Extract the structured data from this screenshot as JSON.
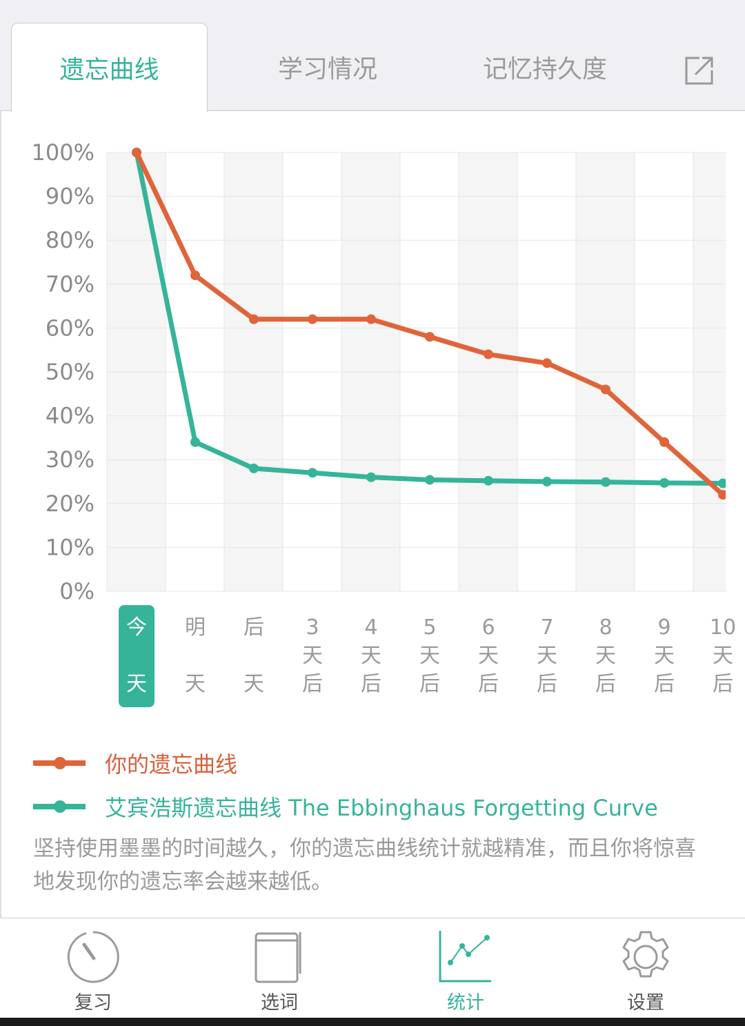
{
  "tabs": [
    {
      "label": "遗忘曲线"
    },
    {
      "label": "学习情况"
    },
    {
      "label": "记忆持久度"
    }
  ],
  "chart_data": {
    "type": "line",
    "categories": [
      [
        "今",
        "",
        "天"
      ],
      [
        "明",
        "",
        "天"
      ],
      [
        "后",
        "",
        "天"
      ],
      [
        "3",
        "天",
        "后"
      ],
      [
        "4",
        "天",
        "后"
      ],
      [
        "5",
        "天",
        "后"
      ],
      [
        "6",
        "天",
        "后"
      ],
      [
        "7",
        "天",
        "后"
      ],
      [
        "8",
        "天",
        "后"
      ],
      [
        "9",
        "天",
        "后"
      ],
      [
        "10",
        "天",
        "后"
      ]
    ],
    "yticks": [
      "0%",
      "10%",
      "20%",
      "30%",
      "40%",
      "50%",
      "60%",
      "70%",
      "80%",
      "90%",
      "100%"
    ],
    "ylim": [
      0,
      100
    ],
    "series": [
      {
        "name": "你的遗忘曲线",
        "color": "#e0643a",
        "values": [
          100,
          72,
          62,
          62,
          62,
          58,
          54,
          52,
          46,
          34,
          22
        ]
      },
      {
        "name": "艾宾浩斯遗忘曲线 The Ebbinghaus Forgetting Curve",
        "color": "#35b49a",
        "values": [
          100,
          34,
          28,
          27,
          26,
          25.4,
          25.2,
          25,
          24.9,
          24.7,
          24.6
        ]
      }
    ],
    "highlight_index": 0
  },
  "note": "坚持使用墨墨的时间越久，你的遗忘曲线统计就越精准，而且你将惊喜地发现你的遗忘率会越来越低。",
  "nav": [
    {
      "label": "复习"
    },
    {
      "label": "选词"
    },
    {
      "label": "统计"
    },
    {
      "label": "设置"
    }
  ]
}
